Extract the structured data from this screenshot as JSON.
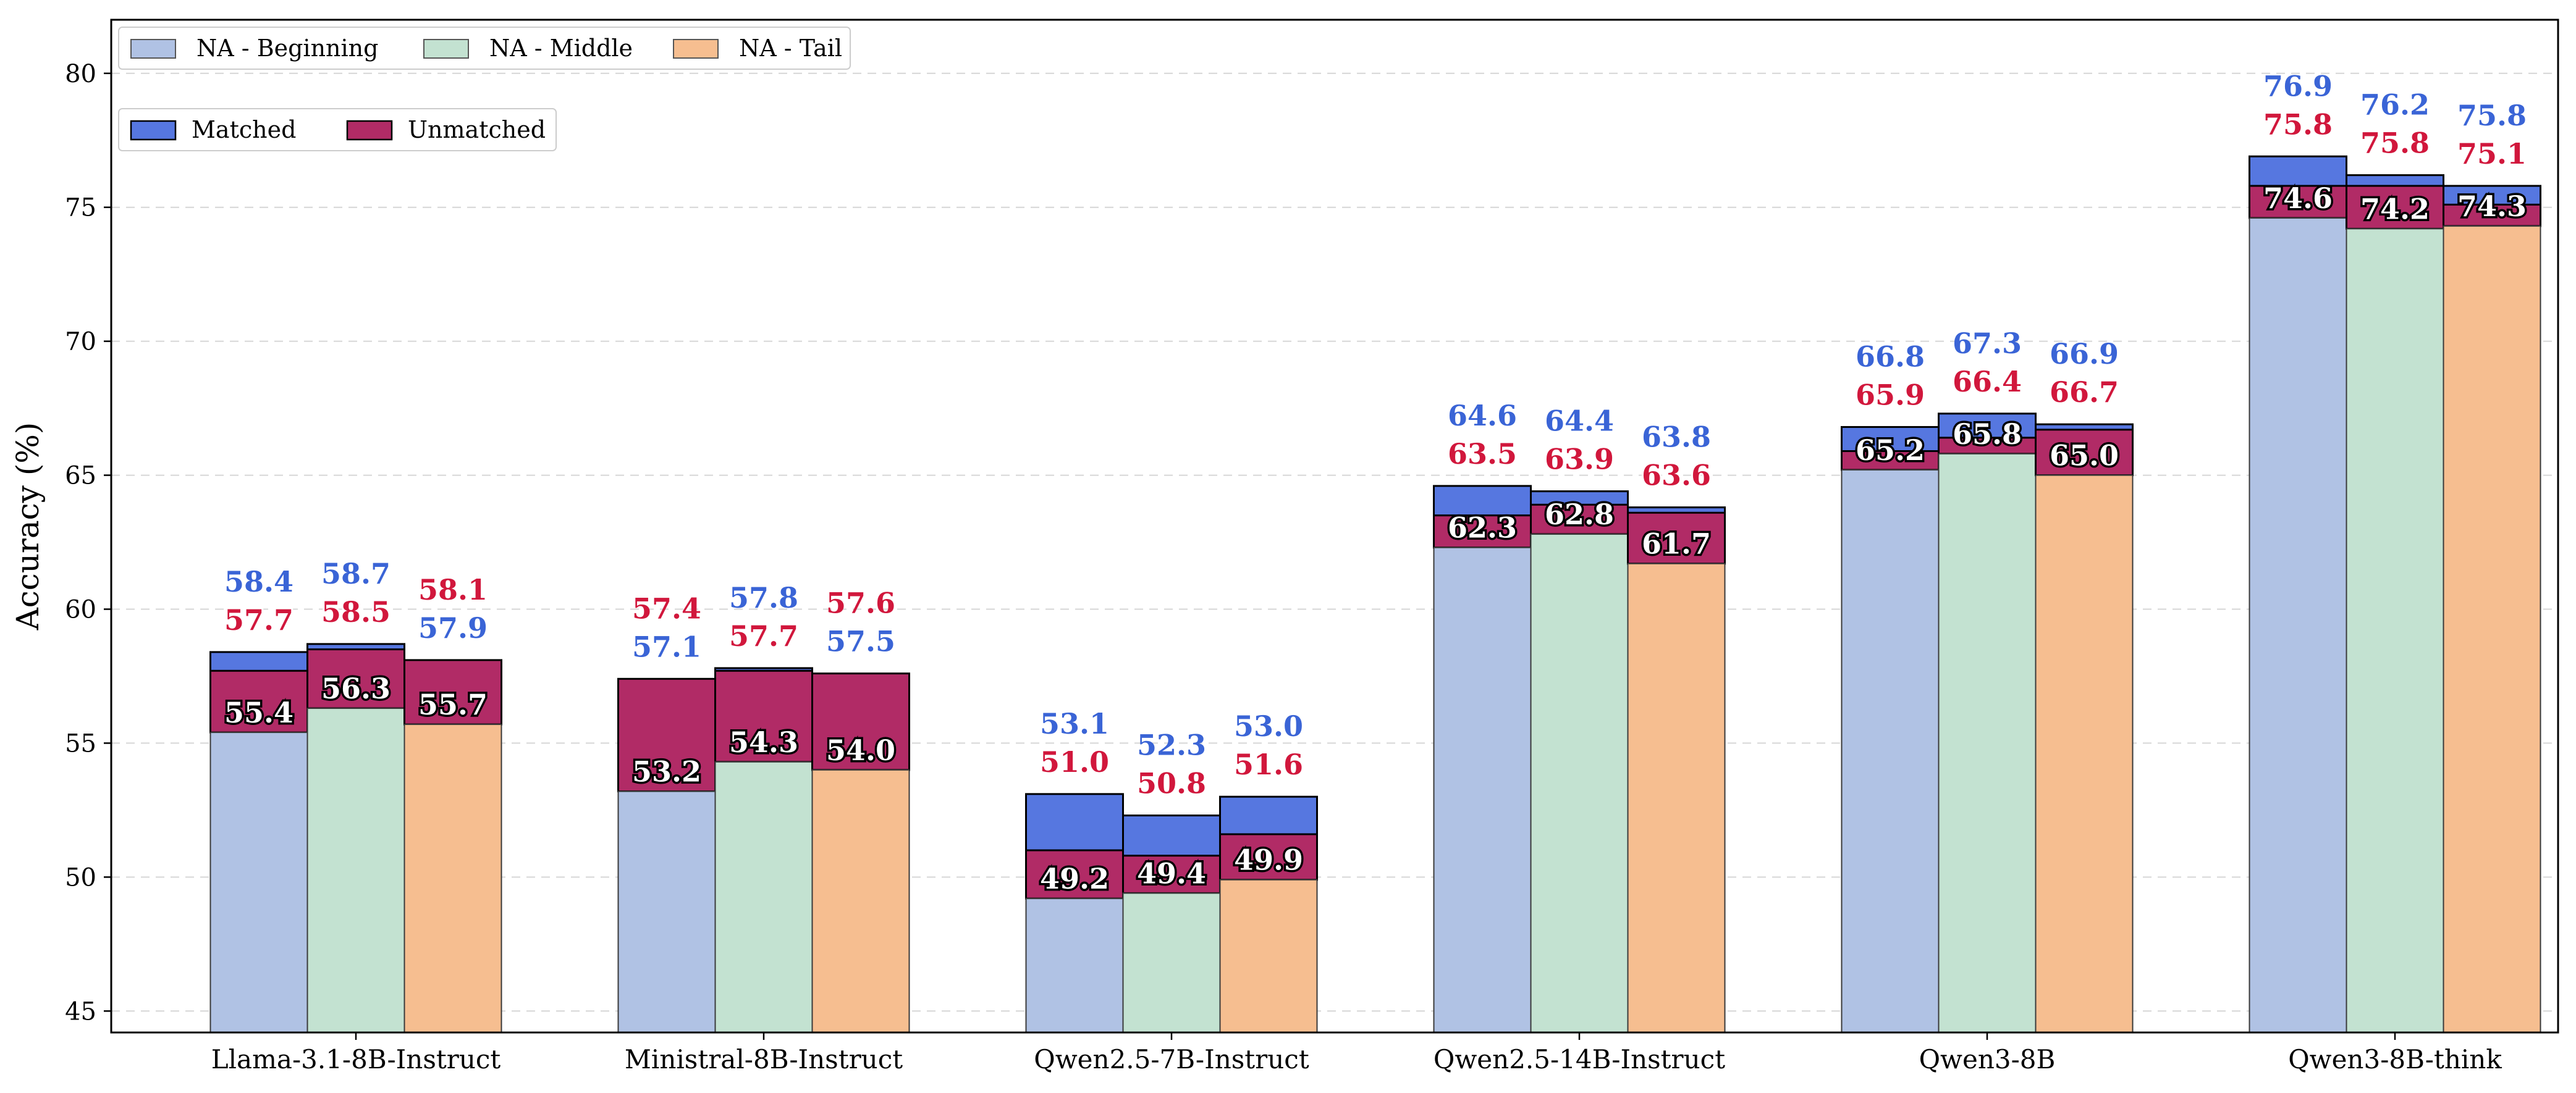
{
  "chart_data": {
    "type": "bar",
    "ylabel": "Accuracy (%)",
    "ylim": [
      44.2,
      82
    ],
    "yticks": [
      45,
      50,
      55,
      60,
      65,
      70,
      75,
      80
    ],
    "grid": "horizontal dashed",
    "categories": [
      "Llama-3.1-8B-Instruct",
      "Ministral-8B-Instruct",
      "Qwen2.5-7B-Instruct",
      "Qwen2.5-14B-Instruct",
      "Qwen3-8B",
      "Qwen3-8B-think"
    ],
    "series": [
      {
        "name": "NA - Beginning",
        "base": [
          55.4,
          53.2,
          49.2,
          62.3,
          65.2,
          74.6
        ],
        "matched": [
          58.4,
          57.1,
          53.1,
          64.6,
          66.8,
          76.9
        ],
        "unmatched": [
          57.7,
          57.4,
          51.0,
          63.5,
          65.9,
          75.8
        ]
      },
      {
        "name": "NA - Middle",
        "base": [
          56.3,
          54.3,
          49.4,
          62.8,
          65.8,
          74.2
        ],
        "matched": [
          58.7,
          57.8,
          52.3,
          64.4,
          67.3,
          76.2
        ],
        "unmatched": [
          58.5,
          57.7,
          50.8,
          63.9,
          66.4,
          75.8
        ]
      },
      {
        "name": "NA - Tail",
        "base": [
          55.7,
          54.0,
          49.9,
          61.7,
          65.0,
          74.3
        ],
        "matched": [
          57.9,
          57.5,
          53.0,
          63.8,
          66.9,
          75.8
        ],
        "unmatched": [
          58.1,
          57.6,
          51.6,
          63.6,
          66.7,
          75.1
        ]
      }
    ],
    "legend_groups": [
      {
        "position": "top-left",
        "entries": [
          "NA - Beginning",
          "NA - Middle",
          "NA - Tail"
        ]
      },
      {
        "position": "upper-left",
        "entries": [
          "Matched",
          "Unmatched"
        ]
      }
    ],
    "colors": {
      "NA - Beginning": "#b0c2e4",
      "NA - Middle": "#c3e2d1",
      "NA - Tail": "#f6be90",
      "Matched": "#5677e0",
      "Unmatched": "#b12b66",
      "Matched_label": "#3a64d6",
      "Unmatched_label": "#d1173c"
    }
  }
}
